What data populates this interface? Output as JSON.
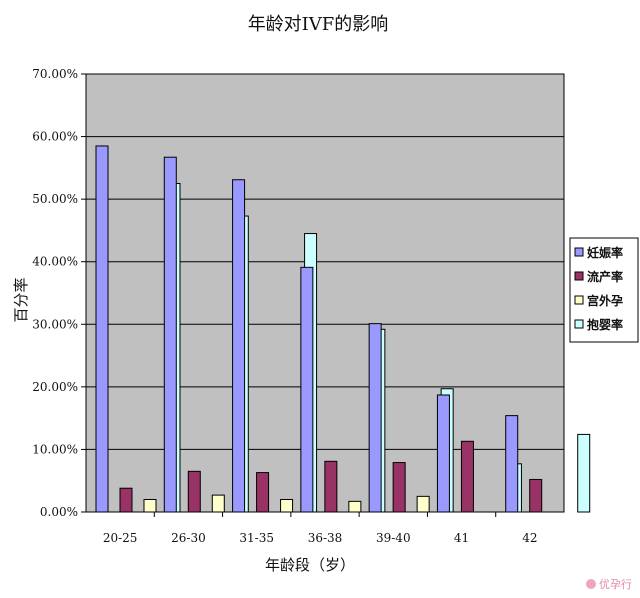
{
  "chart_data": {
    "type": "bar",
    "title": "年龄对IVF的影响",
    "xlabel": "年龄段（岁）",
    "ylabel": "百分率",
    "categories": [
      "20-25",
      "26-30",
      "31-35",
      "36-38",
      "39-40",
      "41",
      "42"
    ],
    "ylim": [
      0,
      70
    ],
    "yticks": [
      "0.00%",
      "10.00%",
      "20.00%",
      "30.00%",
      "40.00%",
      "50.00%",
      "60.00%",
      "70.00%"
    ],
    "grid": true,
    "legend_position": "right",
    "series": [
      {
        "name": "妊娠率",
        "color": "#9999ff",
        "values": [
          58.5,
          56.7,
          53.1,
          39.1,
          30.1,
          18.7,
          15.4
        ]
      },
      {
        "name": "流产率",
        "color": "#993366",
        "values": [
          3.8,
          6.5,
          6.3,
          8.1,
          7.9,
          11.3,
          5.2
        ]
      },
      {
        "name": "宫外孕",
        "color": "#ffffcc",
        "values": [
          2.0,
          2.7,
          2.0,
          1.7,
          2.5,
          0,
          0
        ]
      },
      {
        "name": "抱婴率",
        "color": "#ccffff",
        "values": [
          52.5,
          47.3,
          44.5,
          29.2,
          19.7,
          7.7,
          12.4
        ]
      }
    ],
    "plot_background": "#c0c0c0"
  },
  "watermark": {
    "text": "优孕行"
  }
}
